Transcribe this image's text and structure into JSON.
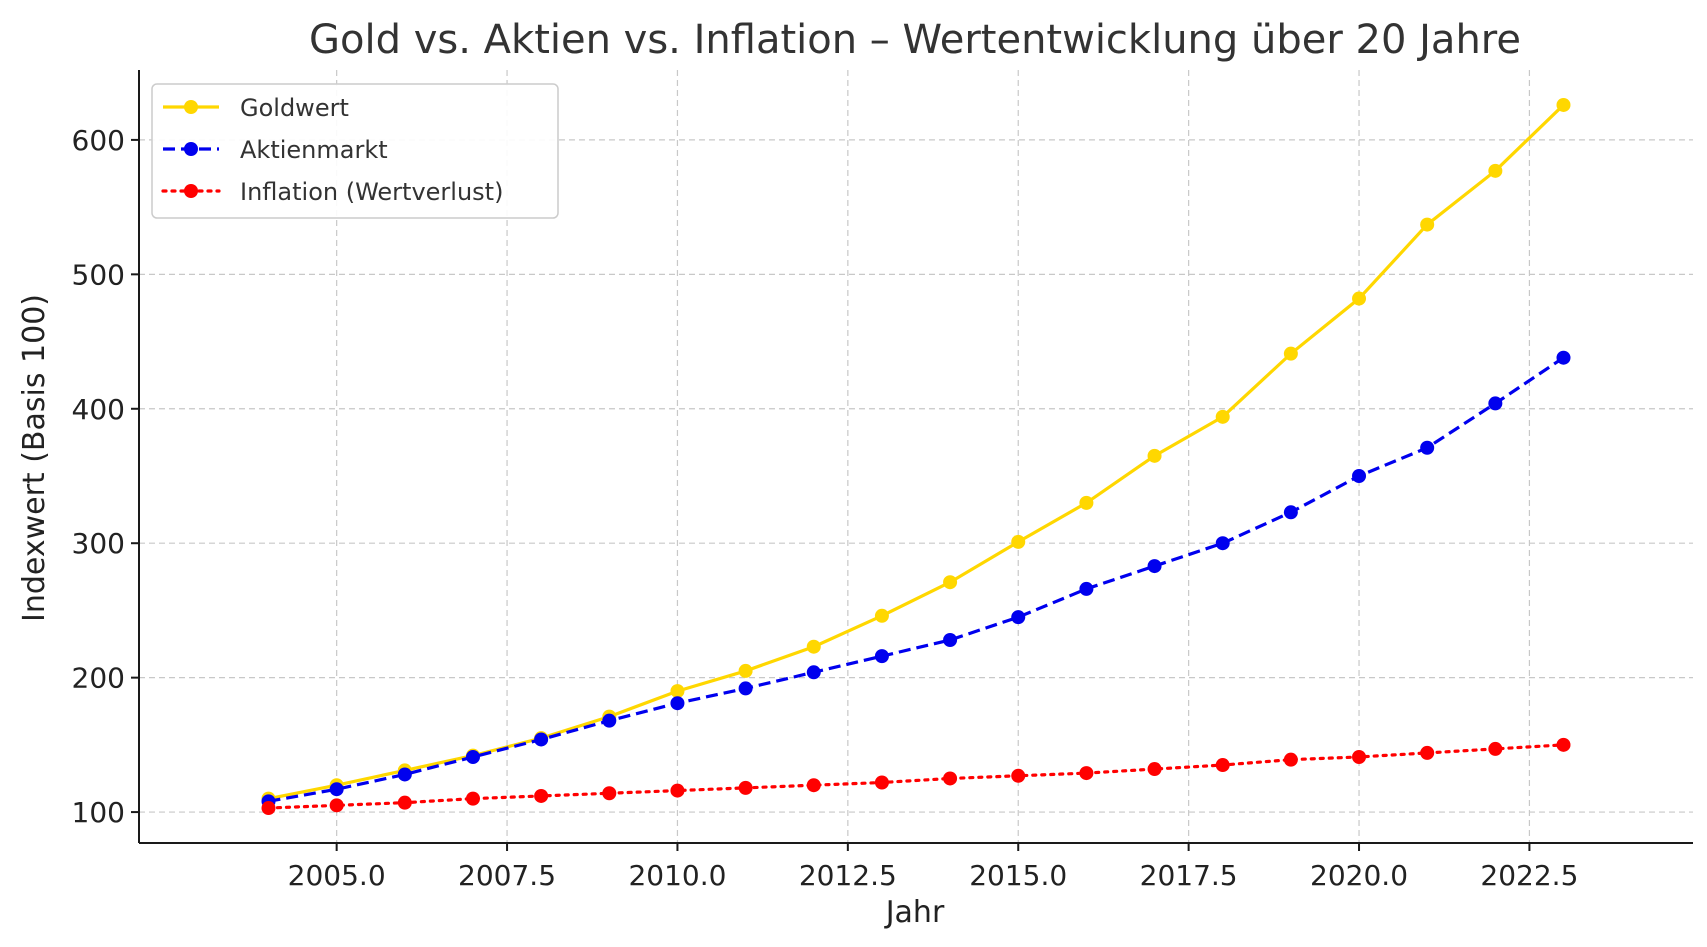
{
  "chart_data": {
    "type": "line",
    "title": "Gold vs. Aktien vs. Inflation – Wertentwicklung über 20 Jahre",
    "xlabel": "Jahr",
    "ylabel": "Indexwert (Basis 100)",
    "xlim": [
      2002.1,
      2024.9
    ],
    "ylim": [
      77,
      652
    ],
    "x_ticks": [
      2005.0,
      2007.5,
      2010.0,
      2012.5,
      2015.0,
      2017.5,
      2020.0,
      2022.5
    ],
    "x_tick_labels": [
      "2005.0",
      "2007.5",
      "2010.0",
      "2012.5",
      "2015.0",
      "2017.5",
      "2020.0",
      "2022.5"
    ],
    "y_ticks": [
      100,
      200,
      300,
      400,
      500,
      600
    ],
    "y_tick_labels": [
      "100",
      "200",
      "300",
      "400",
      "500",
      "600"
    ],
    "grid": true,
    "legend_position": "top-left",
    "x": [
      2004,
      2005,
      2006,
      2007,
      2008,
      2009,
      2010,
      2011,
      2012,
      2013,
      2014,
      2015,
      2016,
      2017,
      2018,
      2019,
      2020,
      2021,
      2022,
      2023
    ],
    "series": [
      {
        "name": "Goldwert",
        "color": "#FFD700",
        "line_style": "solid",
        "values": [
          110,
          120,
          131,
          142,
          155,
          171,
          190,
          205,
          223,
          246,
          271,
          301,
          330,
          365,
          394,
          441,
          482,
          537,
          577,
          626
        ]
      },
      {
        "name": "Aktienmarkt",
        "color": "#0000EE",
        "line_style": "dashed",
        "values": [
          108,
          117,
          128,
          141,
          154,
          168,
          181,
          192,
          204,
          216,
          228,
          245,
          266,
          283,
          300,
          323,
          350,
          371,
          404,
          438
        ]
      },
      {
        "name": "Inflation (Wertverlust)",
        "color": "#FF0000",
        "line_style": "dotted",
        "values": [
          103,
          105,
          107,
          110,
          112,
          114,
          116,
          118,
          120,
          122,
          125,
          127,
          129,
          132,
          135,
          139,
          141,
          144,
          147,
          150
        ]
      }
    ]
  }
}
